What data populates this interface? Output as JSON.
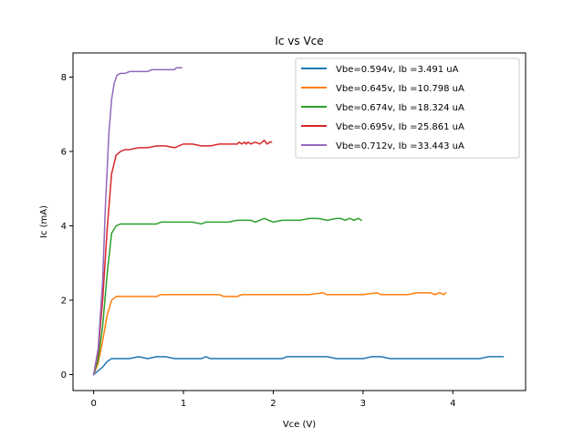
{
  "chart_data": {
    "type": "line",
    "title": "Ic vs Vce",
    "xlabel": "Vce (V)",
    "ylabel": "Ic (mA)",
    "xlim": [
      -0.23,
      4.81
    ],
    "ylim": [
      -0.43,
      8.65
    ],
    "xticks": [
      0,
      1,
      2,
      3,
      4
    ],
    "yticks": [
      0,
      2,
      4,
      6,
      8
    ],
    "grid": false,
    "legend_position": "top-right",
    "series": [
      {
        "name": "Vbe=0.594v, Ib =3.491 uA",
        "color": "#1f77b4",
        "x": [
          0,
          0.05,
          0.1,
          0.15,
          0.2,
          0.3,
          0.4,
          0.5,
          0.6,
          0.7,
          0.8,
          0.9,
          1.0,
          1.1,
          1.2,
          1.25,
          1.3,
          1.4,
          1.6,
          1.8,
          2.0,
          2.1,
          2.15,
          2.3,
          2.5,
          2.6,
          2.7,
          2.8,
          3.0,
          3.1,
          3.2,
          3.3,
          3.5,
          3.7,
          3.9,
          4.1,
          4.3,
          4.4,
          4.56
        ],
        "y": [
          0,
          0.1,
          0.2,
          0.35,
          0.43,
          0.43,
          0.43,
          0.48,
          0.43,
          0.48,
          0.48,
          0.43,
          0.43,
          0.43,
          0.43,
          0.48,
          0.43,
          0.43,
          0.43,
          0.43,
          0.43,
          0.43,
          0.48,
          0.48,
          0.48,
          0.48,
          0.43,
          0.43,
          0.43,
          0.48,
          0.48,
          0.43,
          0.43,
          0.43,
          0.43,
          0.43,
          0.43,
          0.48,
          0.48
        ]
      },
      {
        "name": "Vbe=0.645v, Ib =10.798 uA",
        "color": "#ff7f0e",
        "x": [
          0,
          0.05,
          0.1,
          0.15,
          0.2,
          0.25,
          0.3,
          0.4,
          0.5,
          0.6,
          0.7,
          0.75,
          0.8,
          0.9,
          1.0,
          1.2,
          1.4,
          1.45,
          1.6,
          1.65,
          1.8,
          2.0,
          2.2,
          2.4,
          2.55,
          2.6,
          2.8,
          3.0,
          3.15,
          3.2,
          3.5,
          3.6,
          3.75,
          3.8,
          3.85,
          3.9,
          3.92
        ],
        "y": [
          0,
          0.3,
          0.9,
          1.6,
          2.0,
          2.1,
          2.1,
          2.1,
          2.1,
          2.1,
          2.1,
          2.15,
          2.15,
          2.15,
          2.15,
          2.15,
          2.15,
          2.1,
          2.1,
          2.15,
          2.15,
          2.15,
          2.15,
          2.15,
          2.2,
          2.15,
          2.15,
          2.15,
          2.2,
          2.15,
          2.15,
          2.2,
          2.2,
          2.15,
          2.2,
          2.15,
          2.2
        ]
      },
      {
        "name": "Vbe=0.674v, Ib =18.324 uA",
        "color": "#2ca02c",
        "x": [
          0,
          0.05,
          0.1,
          0.15,
          0.2,
          0.25,
          0.3,
          0.4,
          0.5,
          0.6,
          0.7,
          0.75,
          0.8,
          0.9,
          1.0,
          1.1,
          1.2,
          1.25,
          1.3,
          1.5,
          1.6,
          1.7,
          1.75,
          1.8,
          1.9,
          1.95,
          2.0,
          2.1,
          2.2,
          2.3,
          2.4,
          2.5,
          2.6,
          2.7,
          2.75,
          2.8,
          2.85,
          2.9,
          2.95,
          2.98
        ],
        "y": [
          0,
          0.4,
          1.3,
          2.7,
          3.8,
          4.0,
          4.05,
          4.05,
          4.05,
          4.05,
          4.05,
          4.1,
          4.1,
          4.1,
          4.1,
          4.1,
          4.05,
          4.1,
          4.1,
          4.1,
          4.15,
          4.15,
          4.15,
          4.1,
          4.2,
          4.15,
          4.1,
          4.15,
          4.15,
          4.15,
          4.2,
          4.2,
          4.15,
          4.2,
          4.2,
          4.15,
          4.2,
          4.15,
          4.2,
          4.15
        ]
      },
      {
        "name": "Vbe=0.695v, Ib =25.861 uA",
        "color": "#d62728",
        "x": [
          0,
          0.05,
          0.1,
          0.15,
          0.2,
          0.25,
          0.3,
          0.35,
          0.4,
          0.5,
          0.6,
          0.7,
          0.75,
          0.8,
          0.9,
          1.0,
          1.1,
          1.2,
          1.3,
          1.4,
          1.5,
          1.6,
          1.62,
          1.65,
          1.68,
          1.7,
          1.72,
          1.75,
          1.8,
          1.85,
          1.9,
          1.93,
          1.96,
          1.98
        ],
        "y": [
          0,
          0.6,
          2.0,
          3.9,
          5.4,
          5.9,
          6.0,
          6.05,
          6.05,
          6.1,
          6.1,
          6.15,
          6.15,
          6.15,
          6.1,
          6.2,
          6.2,
          6.15,
          6.15,
          6.2,
          6.2,
          6.2,
          6.25,
          6.2,
          6.25,
          6.2,
          6.25,
          6.2,
          6.25,
          6.2,
          6.3,
          6.2,
          6.25,
          6.25
        ]
      },
      {
        "name": "Vbe=0.712v, Ib =33.443 uA",
        "color": "#9467bd",
        "x": [
          0,
          0.05,
          0.1,
          0.13,
          0.17,
          0.2,
          0.23,
          0.26,
          0.3,
          0.35,
          0.4,
          0.45,
          0.5,
          0.55,
          0.6,
          0.65,
          0.7,
          0.75,
          0.8,
          0.85,
          0.87,
          0.9,
          0.92,
          0.95,
          0.98
        ],
        "y": [
          0,
          0.7,
          2.5,
          4.5,
          6.5,
          7.4,
          7.85,
          8.05,
          8.1,
          8.1,
          8.15,
          8.15,
          8.15,
          8.15,
          8.15,
          8.2,
          8.2,
          8.2,
          8.2,
          8.2,
          8.2,
          8.2,
          8.25,
          8.25,
          8.25
        ]
      }
    ]
  }
}
